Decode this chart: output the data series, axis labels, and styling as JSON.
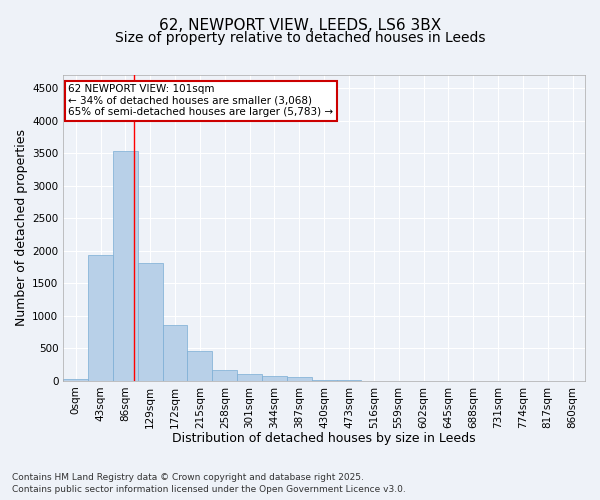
{
  "title_line1": "62, NEWPORT VIEW, LEEDS, LS6 3BX",
  "title_line2": "Size of property relative to detached houses in Leeds",
  "xlabel": "Distribution of detached houses by size in Leeds",
  "ylabel": "Number of detached properties",
  "bar_labels": [
    "0sqm",
    "43sqm",
    "86sqm",
    "129sqm",
    "172sqm",
    "215sqm",
    "258sqm",
    "301sqm",
    "344sqm",
    "387sqm",
    "430sqm",
    "473sqm",
    "516sqm",
    "559sqm",
    "602sqm",
    "645sqm",
    "688sqm",
    "731sqm",
    "774sqm",
    "817sqm",
    "860sqm"
  ],
  "bar_values": [
    30,
    1940,
    3530,
    1810,
    860,
    460,
    160,
    100,
    70,
    55,
    20,
    10,
    5,
    3,
    2,
    1,
    1,
    0,
    0,
    0,
    0
  ],
  "bar_color": "#b8d0e8",
  "bar_edge_color": "#7aadd4",
  "ylim": [
    0,
    4700
  ],
  "yticks": [
    0,
    500,
    1000,
    1500,
    2000,
    2500,
    3000,
    3500,
    4000,
    4500
  ],
  "property_line_x": 2.35,
  "annotation_line1": "62 NEWPORT VIEW: 101sqm",
  "annotation_line2": "← 34% of detached houses are smaller (3,068)",
  "annotation_line3": "65% of semi-detached houses are larger (5,783) →",
  "annotation_box_color": "#ffffff",
  "annotation_box_edge": "#cc0000",
  "footnote1": "Contains HM Land Registry data © Crown copyright and database right 2025.",
  "footnote2": "Contains public sector information licensed under the Open Government Licence v3.0.",
  "background_color": "#eef2f8",
  "grid_color": "#ffffff",
  "title_fontsize": 11,
  "subtitle_fontsize": 10,
  "xlabel_fontsize": 9,
  "ylabel_fontsize": 9,
  "tick_fontsize": 7.5,
  "annotation_fontsize": 7.5,
  "footnote_fontsize": 6.5
}
